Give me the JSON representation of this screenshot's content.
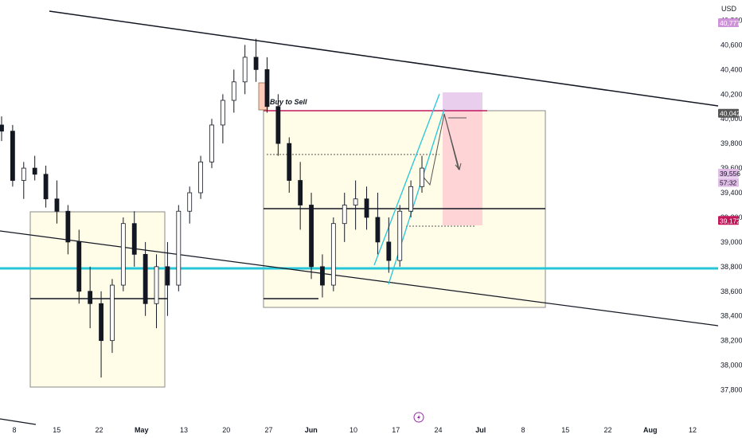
{
  "chart_data": {
    "type": "candlestick",
    "instrument_note": "",
    "currency": "USD",
    "y_axis": {
      "ticks": [
        37800,
        38000,
        38200,
        38400,
        38600,
        38800,
        39000,
        39200,
        39400,
        39600,
        39800,
        40000,
        40200,
        40400,
        40600,
        40800
      ],
      "tick_labels": [
        "37,800",
        "38,000",
        "38,200",
        "38,400",
        "38,600",
        "38,800",
        "39,000",
        "39,200",
        "39,400",
        "39,600",
        "39,800",
        "40,000",
        "40,200",
        "40,400",
        "40,600",
        "40,800"
      ],
      "ylim": [
        37700,
        40900
      ]
    },
    "x_axis": {
      "tick_labels": [
        "8",
        "15",
        "22",
        "May",
        "13",
        "20",
        "27",
        "Jun",
        "10",
        "17",
        "24",
        "Jul",
        "8",
        "15",
        "22",
        "Aug",
        "12"
      ],
      "bold_labels": [
        "May",
        "Jun",
        "Jul",
        "Aug"
      ]
    },
    "price_tags": [
      {
        "value": "40,777",
        "bg": "#ce93d8",
        "fg": "#ffffff",
        "price": 40777
      },
      {
        "value": "40,042",
        "bg": "#555555",
        "fg": "#ffffff",
        "price": 40042
      },
      {
        "value": "39,556",
        "bg": "#e1bee7",
        "fg": "#131722",
        "price": 39556
      },
      {
        "value": "57:32",
        "bg": "#e1bee7",
        "fg": "#131722",
        "price": 39480
      },
      {
        "value": "39,172",
        "bg": "#c2185b",
        "fg": "#ffffff",
        "price": 39172
      }
    ],
    "annotations": [
      {
        "text": "Buy to Sell"
      }
    ],
    "series": [
      {
        "type": "candles",
        "ohlc": [
          [
            39950,
            40020,
            39820,
            39900
          ],
          [
            39900,
            39950,
            39450,
            39500
          ],
          [
            39500,
            39650,
            39350,
            39600
          ],
          [
            39600,
            39700,
            39500,
            39550
          ],
          [
            39550,
            39620,
            39280,
            39350
          ],
          [
            39350,
            39500,
            39150,
            39250
          ],
          [
            39250,
            39300,
            38900,
            39000
          ],
          [
            39000,
            39100,
            38500,
            38600
          ],
          [
            38600,
            38800,
            38300,
            38500
          ],
          [
            38500,
            38600,
            37900,
            38200
          ],
          [
            38200,
            38700,
            38100,
            38650
          ],
          [
            38650,
            39200,
            38600,
            39150
          ],
          [
            39150,
            39250,
            38800,
            38900
          ],
          [
            38900,
            39000,
            38400,
            38500
          ],
          [
            38500,
            38900,
            38300,
            38800
          ],
          [
            38800,
            39000,
            38400,
            38650
          ],
          [
            38650,
            39300,
            38600,
            39250
          ],
          [
            39250,
            39450,
            39150,
            39400
          ],
          [
            39400,
            39700,
            39350,
            39650
          ],
          [
            39650,
            40000,
            39600,
            39950
          ],
          [
            39950,
            40200,
            39800,
            40150
          ],
          [
            40150,
            40400,
            40050,
            40300
          ],
          [
            40300,
            40600,
            40200,
            40500
          ],
          [
            40500,
            40650,
            40300,
            40400
          ],
          [
            40400,
            40500,
            40050,
            40100
          ],
          [
            40100,
            40200,
            39700,
            39800
          ],
          [
            39800,
            39850,
            39400,
            39500
          ],
          [
            39500,
            39650,
            39100,
            39300
          ],
          [
            39300,
            39400,
            38700,
            38800
          ],
          [
            38800,
            38900,
            38550,
            38650
          ],
          [
            38650,
            39200,
            38600,
            39150
          ],
          [
            39150,
            39400,
            39000,
            39300
          ],
          [
            39300,
            39500,
            39100,
            39350
          ],
          [
            39350,
            39450,
            39100,
            39200
          ],
          [
            39200,
            39400,
            38900,
            39000
          ],
          [
            39000,
            39200,
            38750,
            38850
          ],
          [
            38850,
            39300,
            38800,
            39250
          ],
          [
            39250,
            39500,
            39200,
            39450
          ],
          [
            39450,
            39700,
            39400,
            39600
          ]
        ]
      }
    ]
  }
}
